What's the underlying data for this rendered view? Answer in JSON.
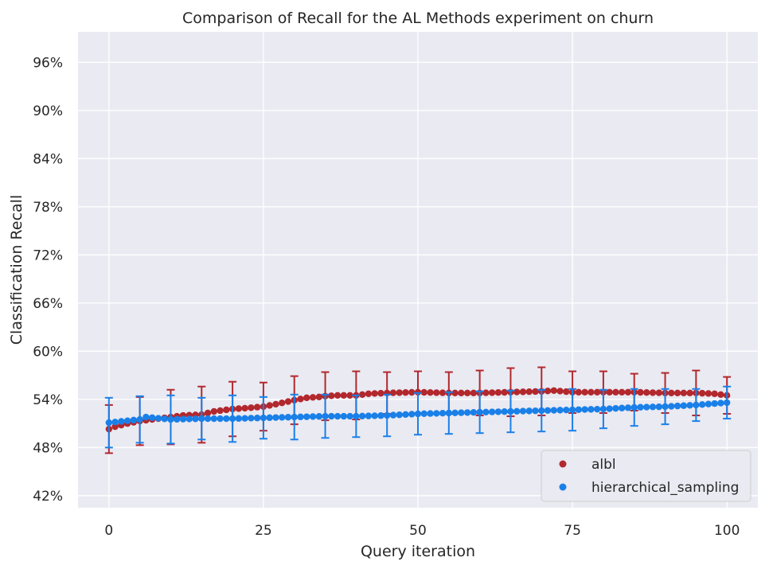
{
  "chart_data": {
    "type": "scatter",
    "title": "Comparison of Recall for the AL Methods experiment on churn",
    "xlabel": "Query iteration",
    "ylabel": "Classification Recall",
    "xlim": [
      -5,
      105
    ],
    "ylim": [
      40.5,
      99.8
    ],
    "xticks": [
      0,
      25,
      50,
      75,
      100
    ],
    "xtick_labels": [
      "0",
      "25",
      "50",
      "75",
      "100"
    ],
    "yticks": [
      42,
      48,
      54,
      60,
      66,
      72,
      78,
      84,
      90,
      96
    ],
    "ytick_labels": [
      "42%",
      "48%",
      "54%",
      "60%",
      "66%",
      "72%",
      "78%",
      "84%",
      "90%",
      "96%"
    ],
    "grid": true,
    "background": "#eaeaf2",
    "legend_position": "lower-right",
    "error_bar_every": 5,
    "series": [
      {
        "name": "albl",
        "color": "#b2282d",
        "anchors": {
          "x": [
            0,
            1,
            3,
            5,
            6,
            8,
            10,
            12,
            15,
            17,
            20,
            22,
            25,
            27,
            30,
            32,
            34,
            35,
            37,
            40,
            42,
            45,
            50,
            55,
            60,
            65,
            70,
            72,
            75,
            80,
            85,
            90,
            95,
            98,
            100
          ],
          "y": [
            50.3,
            50.6,
            51.0,
            51.3,
            51.4,
            51.6,
            51.8,
            52.0,
            52.1,
            52.5,
            52.8,
            52.9,
            53.1,
            53.4,
            53.9,
            54.2,
            54.3,
            54.4,
            54.5,
            54.5,
            54.7,
            54.8,
            54.9,
            54.8,
            54.8,
            54.9,
            55.0,
            55.1,
            54.9,
            54.9,
            54.9,
            54.8,
            54.8,
            54.7,
            54.5
          ]
        },
        "error": {
          "x": [
            0,
            5,
            10,
            15,
            20,
            25,
            30,
            35,
            40,
            45,
            50,
            55,
            60,
            65,
            70,
            75,
            80,
            85,
            90,
            95,
            100
          ],
          "half": [
            3.0,
            3.0,
            3.4,
            3.5,
            3.4,
            3.0,
            3.0,
            3.0,
            3.0,
            2.6,
            2.6,
            2.6,
            2.8,
            3.0,
            3.0,
            2.6,
            2.6,
            2.3,
            2.5,
            2.8,
            2.3
          ]
        }
      },
      {
        "name": "hierarchical_sampling",
        "color": "#1a80e8",
        "anchors": {
          "x": [
            0,
            5,
            6,
            10,
            15,
            20,
            25,
            30,
            35,
            40,
            45,
            50,
            55,
            60,
            65,
            70,
            75,
            80,
            85,
            90,
            95,
            100
          ],
          "y": [
            51.1,
            51.5,
            51.8,
            51.5,
            51.6,
            51.6,
            51.7,
            51.8,
            51.9,
            51.9,
            52.0,
            52.2,
            52.3,
            52.4,
            52.5,
            52.6,
            52.7,
            52.8,
            53.0,
            53.1,
            53.3,
            53.6
          ]
        },
        "error": {
          "x": [
            0,
            5,
            10,
            15,
            20,
            25,
            30,
            35,
            40,
            45,
            50,
            55,
            60,
            65,
            70,
            75,
            80,
            85,
            90,
            95,
            100
          ],
          "half": [
            3.1,
            2.9,
            3.0,
            2.6,
            2.9,
            2.6,
            2.8,
            2.7,
            2.6,
            2.6,
            2.6,
            2.6,
            2.6,
            2.6,
            2.6,
            2.6,
            2.4,
            2.3,
            2.2,
            2.0,
            2.0
          ]
        }
      }
    ]
  }
}
